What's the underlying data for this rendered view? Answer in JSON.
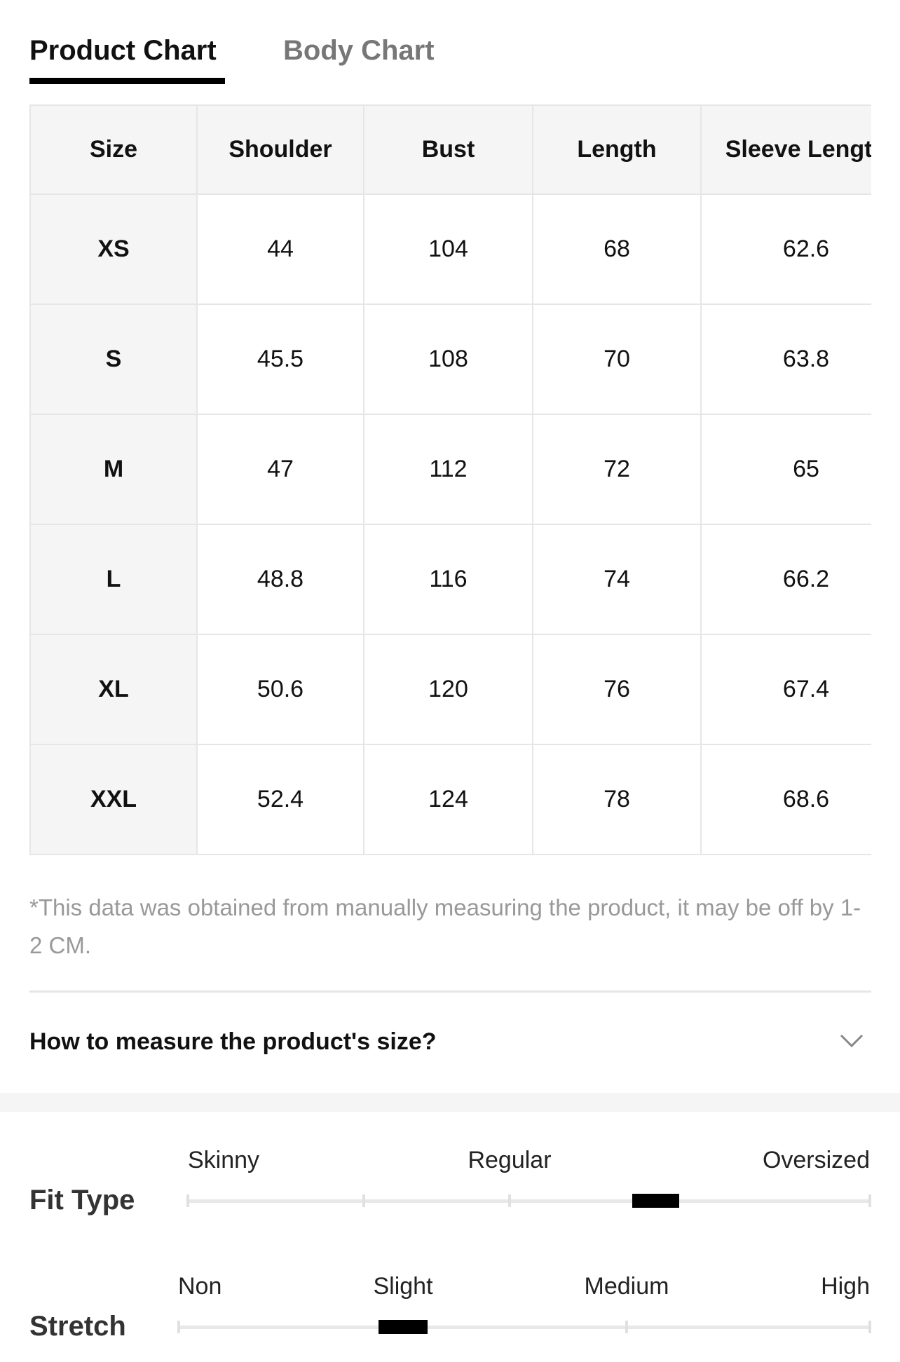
{
  "tabs": [
    "Product Chart",
    "Body Chart"
  ],
  "table": {
    "headers": [
      "Size",
      "Shoulder",
      "Bust",
      "Length",
      "Sleeve Length"
    ],
    "rows": [
      [
        "XS",
        "44",
        "104",
        "68",
        "62.6"
      ],
      [
        "S",
        "45.5",
        "108",
        "70",
        "63.8"
      ],
      [
        "M",
        "47",
        "112",
        "72",
        "65"
      ],
      [
        "L",
        "48.8",
        "116",
        "74",
        "66.2"
      ],
      [
        "XL",
        "50.6",
        "120",
        "76",
        "67.4"
      ],
      [
        "XXL",
        "52.4",
        "124",
        "78",
        "68.6"
      ]
    ]
  },
  "note": "*This data was obtained from manually measuring the product, it may be off by 1-2 CM.",
  "accordion": {
    "title": "How to measure the product's size?"
  },
  "fit": {
    "label": "Fit Type",
    "options": [
      "Skinny",
      "Regular",
      "Oversized"
    ]
  },
  "stretch": {
    "label": "Stretch",
    "options": [
      "Non",
      "Slight",
      "Medium",
      "High"
    ]
  }
}
